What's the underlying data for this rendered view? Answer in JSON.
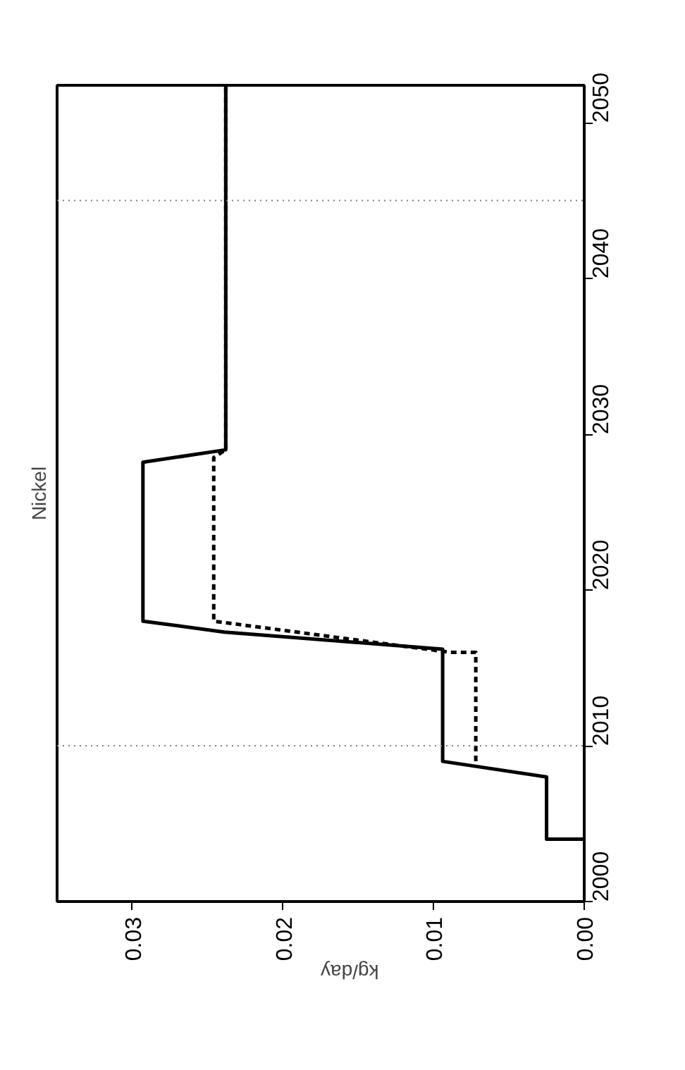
{
  "chart_data": {
    "type": "line",
    "title": "Nickel",
    "xlabel": "kg/day",
    "xlim": [
      0.035,
      0
    ],
    "xticks": [
      {
        "value": 0.03,
        "label": "0.03"
      },
      {
        "value": 0.02,
        "label": "0.02"
      },
      {
        "value": 0.01,
        "label": "0.01"
      },
      {
        "value": 0,
        "label": "0.00"
      }
    ],
    "ylim": [
      2000,
      2052.4
    ],
    "yticks": [
      2000,
      2010,
      2020,
      2030,
      2040,
      2050
    ],
    "grid": false,
    "series": [
      {
        "color": "#000000",
        "line_style": "solid",
        "x": [
          0,
          0.0025,
          0.0025,
          0.0094,
          0.0094,
          0.0239,
          0.0293,
          0.0293,
          0.0238,
          0.0238
        ],
        "values": [
          2004,
          2004,
          2008,
          2009,
          2016.2,
          2017.3,
          2018,
          2028.2,
          2029,
          2052.4
        ]
      },
      {
        "color": "#000000",
        "line_style": "dashed",
        "x": [
          0.0072,
          0.0072,
          0.0089,
          0.0246,
          0.0246,
          0.0238,
          0.0238
        ],
        "values": [
          2009,
          2016,
          2016,
          2018,
          2028.5,
          2029,
          2052.4
        ]
      }
    ],
    "ref_lines": [
      {
        "axis": "y",
        "value": 2010,
        "color": "#808080",
        "line_style": "dotted"
      },
      {
        "axis": "y",
        "value": 2045,
        "color": "#808080",
        "line_style": "dotted"
      }
    ]
  }
}
